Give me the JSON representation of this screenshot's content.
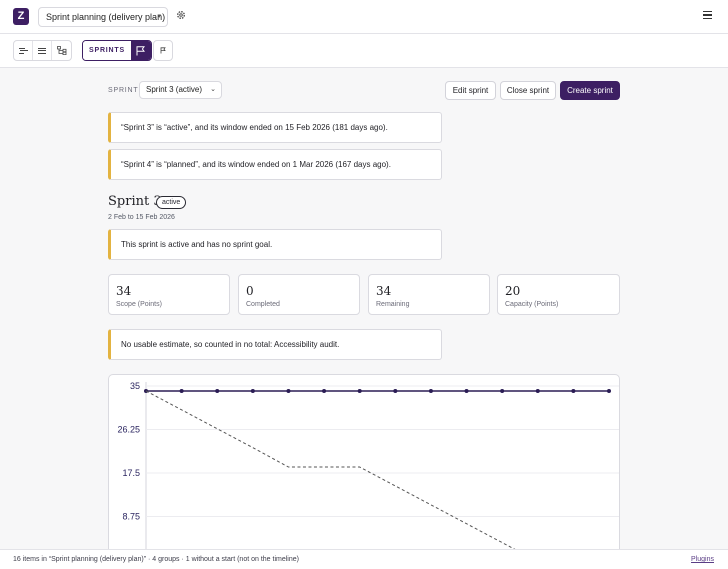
{
  "app": {
    "logo": "Z",
    "plan_name": "Sprint planning (delivery plan)"
  },
  "toolbar": {
    "sprints_label": "SPRINTS",
    "flag_small": "⚐"
  },
  "sprint_picker": {
    "label": "SPRINT",
    "selected": "Sprint 3 (active)"
  },
  "actions": {
    "edit": "Edit sprint",
    "close": "Close sprint",
    "create": "Create sprint"
  },
  "alerts": [
    "“Sprint 3” is “active”, and its window ended on 15 Feb 2026 (181 days ago).",
    "“Sprint 4” is “planned”, and its window ended on 1 Mar 2026 (167 days ago)."
  ],
  "sprint": {
    "title": "Sprint 3",
    "status": "active",
    "dates": "2 Feb to 15 Feb 2026",
    "goal_note": "This sprint is active and has no sprint goal."
  },
  "stats": [
    {
      "value": "34",
      "label": "Scope (Points)"
    },
    {
      "value": "0",
      "label": "Completed"
    },
    {
      "value": "34",
      "label": "Remaining"
    },
    {
      "value": "20",
      "label": "Capacity (Points)"
    }
  ],
  "estimate_note": "No usable estimate, so counted in no total: Accessibility audit.",
  "colors": {
    "accent": "#3d1f63",
    "warning": "#e3b341"
  },
  "chart_data": {
    "type": "line",
    "y_ticks": [
      "35",
      "26.25",
      "17.5",
      "8.75"
    ],
    "ylim": [
      0,
      35
    ],
    "x_count": 14,
    "series": [
      {
        "values": [
          34,
          34,
          34,
          34,
          34,
          34,
          34,
          34,
          34,
          34,
          34,
          34,
          34,
          34
        ],
        "style": "solid"
      },
      {
        "values": [
          34,
          30.2,
          26.4,
          22.6,
          18.7,
          18.7,
          18.7,
          14.9,
          11.1,
          7.3,
          null,
          null,
          null,
          null
        ],
        "style": "dashed"
      }
    ]
  },
  "statusbar": {
    "text": "16 items in “Sprint planning (delivery plan)” · 4 groups · 1 without a start (not on the timeline)",
    "plugins": "Plugins"
  }
}
